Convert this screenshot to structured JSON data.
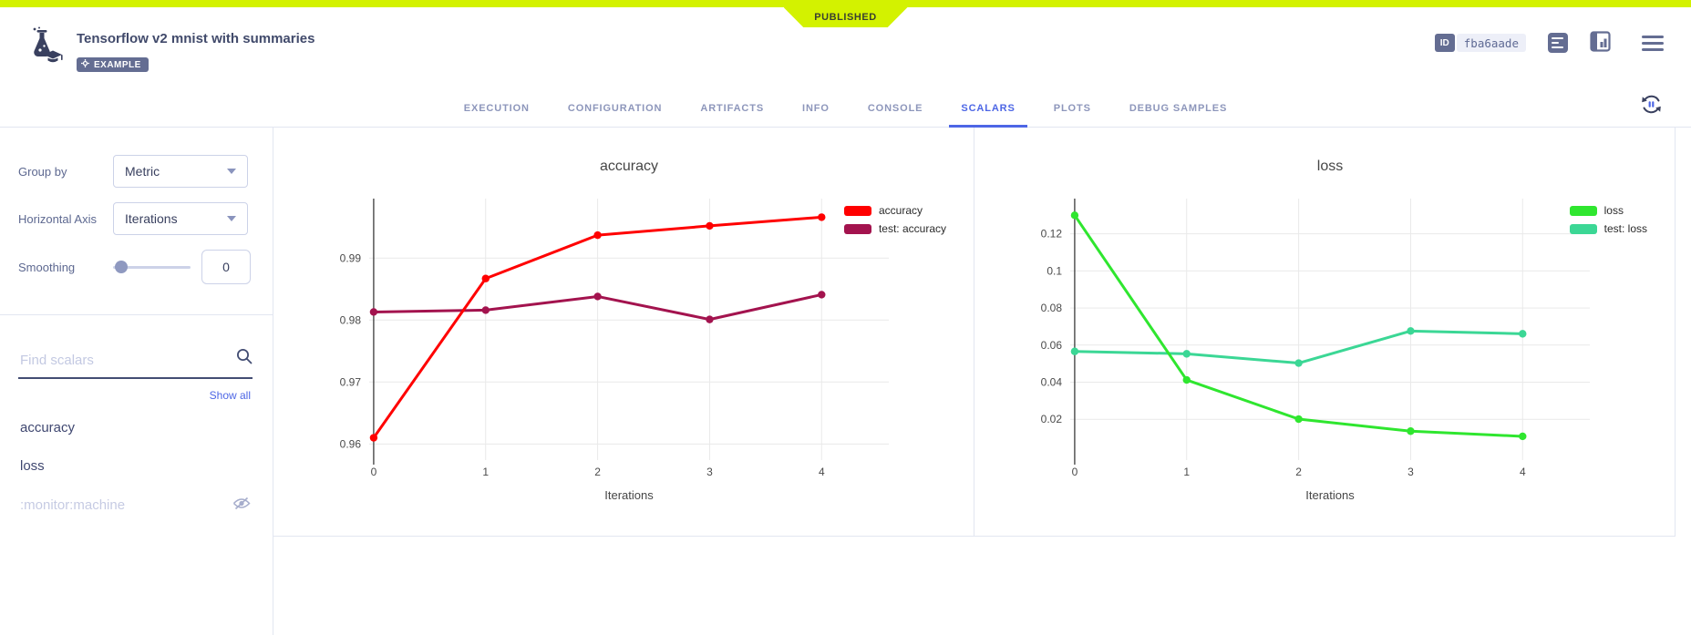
{
  "colors": {
    "accent": "#4d66e5",
    "lime": "#d3f200",
    "slate": "#646d92",
    "tab_inactive": "#8d96bb",
    "grid": "#e9e9e9"
  },
  "icons": {
    "logo": "flask-graduation-cap",
    "example_badge_icon": "gear",
    "id_badge": "id-tag",
    "details": "list-lines",
    "compare": "panel-bar-chart",
    "menu": "hamburger",
    "refresh": "auto-refresh-pause",
    "search": "magnifier",
    "hidden_metric": "eye-off",
    "dropdown": "chevron-down"
  },
  "header": {
    "published_label": "PUBLISHED",
    "title": "Tensorflow v2 mnist with summaries",
    "example_badge": "EXAMPLE",
    "id_label": "ID",
    "id_value": "fba6aade",
    "tabs": [
      "EXECUTION",
      "CONFIGURATION",
      "ARTIFACTS",
      "INFO",
      "CONSOLE",
      "SCALARS",
      "PLOTS",
      "DEBUG SAMPLES"
    ],
    "active_tab": "SCALARS"
  },
  "sidebar": {
    "group_by": {
      "label": "Group by",
      "value": "Metric"
    },
    "horizontal_axis": {
      "label": "Horizontal Axis",
      "value": "Iterations"
    },
    "smoothing": {
      "label": "Smoothing",
      "value": "0"
    },
    "search_placeholder": "Find scalars",
    "show_all_label": "Show all",
    "metrics": [
      {
        "label": "accuracy",
        "hidden": false
      },
      {
        "label": "loss",
        "hidden": false
      },
      {
        "label": ":monitor:machine",
        "hidden": true
      }
    ]
  },
  "chart_data": [
    {
      "type": "line",
      "title": "accuracy",
      "xlabel": "Iterations",
      "x": [
        0,
        1,
        2,
        3,
        4
      ],
      "series": [
        {
          "name": "accuracy",
          "color": "#ff0000",
          "values": [
            0.961,
            0.9867,
            0.9937,
            0.9952,
            0.9966
          ]
        },
        {
          "name": "test: accuracy",
          "color": "#a3134e",
          "values": [
            0.9813,
            0.9816,
            0.9838,
            0.9801,
            0.9841
          ]
        }
      ],
      "xticks": [
        0,
        1,
        2,
        3,
        4
      ],
      "xtick_labels": [
        "0",
        "1",
        "2",
        "3",
        "4"
      ],
      "yticks": [
        0.96,
        0.97,
        0.98,
        0.99
      ],
      "ytick_labels": [
        "0.96",
        "0.97",
        "0.98",
        "0.99"
      ],
      "xlim": [
        -0.04,
        4.6
      ],
      "ylim": [
        0.9574,
        0.9996
      ],
      "grid": true,
      "legend_position": "right"
    },
    {
      "type": "line",
      "title": "loss",
      "xlabel": "Iterations",
      "x": [
        0,
        1,
        2,
        3,
        4
      ],
      "series": [
        {
          "name": "loss",
          "color": "#2fe62f",
          "values": [
            0.13,
            0.0412,
            0.0201,
            0.0136,
            0.0108
          ]
        },
        {
          "name": "test: loss",
          "color": "#3bd795",
          "values": [
            0.0566,
            0.0553,
            0.0503,
            0.0676,
            0.0661
          ]
        }
      ],
      "xticks": [
        0,
        1,
        2,
        3,
        4
      ],
      "xtick_labels": [
        "0",
        "1",
        "2",
        "3",
        "4"
      ],
      "yticks": [
        0.02,
        0.04,
        0.06,
        0.08,
        0.1,
        0.12
      ],
      "ytick_labels": [
        "0.02",
        "0.04",
        "0.06",
        "0.08",
        "0.1",
        "0.12"
      ],
      "xlim": [
        -0.04,
        4.6
      ],
      "ylim": [
        -0.002,
        0.139
      ],
      "grid": true,
      "legend_position": "right"
    }
  ]
}
